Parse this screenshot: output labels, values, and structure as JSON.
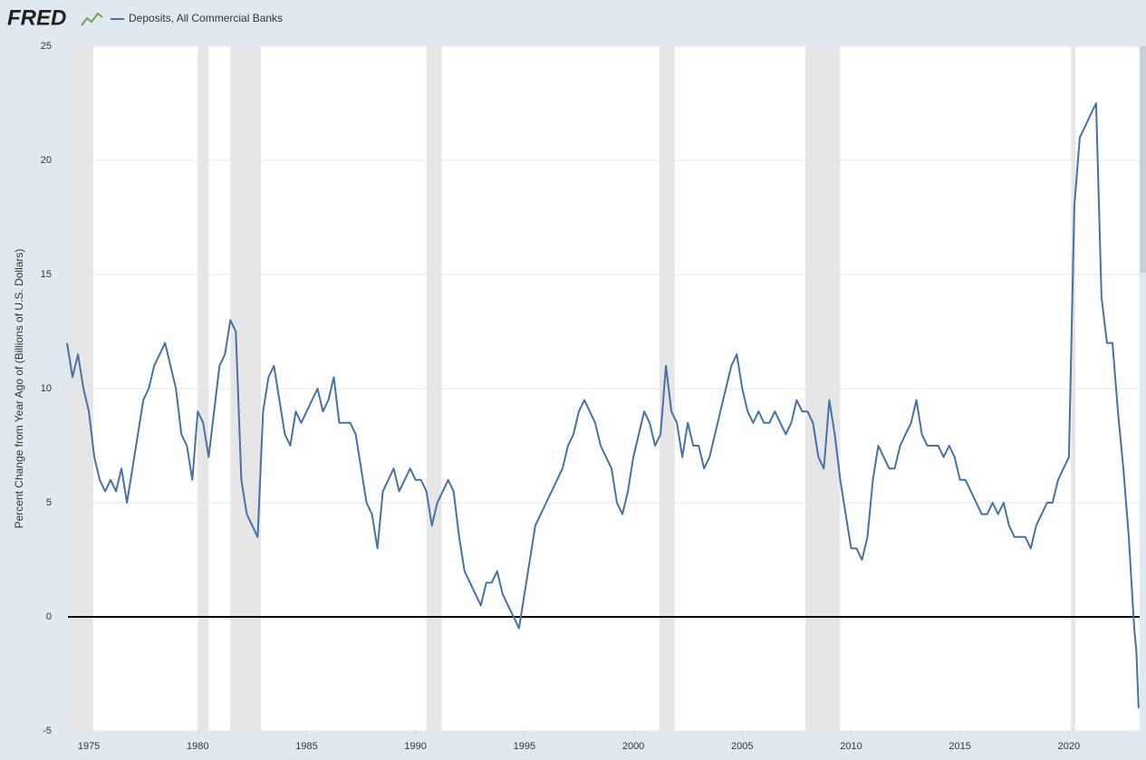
{
  "logo": "FRED",
  "chart_data": {
    "type": "line",
    "y_label": "Percent Change from Year Ago of (Billions of U.S. Dollars)",
    "xlim": [
      1974.04,
      2023.25
    ],
    "xticks": [
      1975,
      1980,
      1985,
      1990,
      1995,
      2000,
      2005,
      2010,
      2015,
      2020
    ],
    "ylim": [
      -5,
      25
    ],
    "yticks": [
      -5,
      0,
      5,
      10,
      15,
      20,
      25
    ],
    "grid": true,
    "recessions": [
      [
        1974.04,
        1975.2
      ],
      [
        1980.0,
        1980.5
      ],
      [
        1981.5,
        1982.9
      ],
      [
        1990.5,
        1991.2
      ],
      [
        2001.2,
        2001.9
      ],
      [
        2007.9,
        2009.5
      ],
      [
        2020.1,
        2020.3
      ]
    ],
    "x": [
      1974,
      1974.25,
      1974.5,
      1974.75,
      1975,
      1975.25,
      1975.5,
      1975.75,
      1976,
      1976.25,
      1976.5,
      1976.75,
      1977,
      1977.25,
      1977.5,
      1977.75,
      1978,
      1978.25,
      1978.5,
      1978.75,
      1979,
      1979.25,
      1979.5,
      1979.75,
      1980,
      1980.25,
      1980.5,
      1980.75,
      1981,
      1981.25,
      1981.5,
      1981.75,
      1982,
      1982.25,
      1982.5,
      1982.75,
      1983,
      1983.25,
      1983.5,
      1983.75,
      1984,
      1984.25,
      1984.5,
      1984.75,
      1985,
      1985.25,
      1985.5,
      1985.75,
      1986,
      1986.25,
      1986.5,
      1986.75,
      1987,
      1987.25,
      1987.5,
      1987.75,
      1988,
      1988.25,
      1988.5,
      1988.75,
      1989,
      1989.25,
      1989.5,
      1989.75,
      1990,
      1990.25,
      1990.5,
      1990.75,
      1991,
      1991.25,
      1991.5,
      1991.75,
      1992,
      1992.25,
      1992.5,
      1992.75,
      1993,
      1993.25,
      1993.5,
      1993.75,
      1994,
      1994.25,
      1994.5,
      1994.75,
      1995,
      1995.25,
      1995.5,
      1995.75,
      1996,
      1996.25,
      1996.5,
      1996.75,
      1997,
      1997.25,
      1997.5,
      1997.75,
      1998,
      1998.25,
      1998.5,
      1998.75,
      1999,
      1999.25,
      1999.5,
      1999.75,
      2000,
      2000.25,
      2000.5,
      2000.75,
      2001,
      2001.25,
      2001.5,
      2001.75,
      2002,
      2002.25,
      2002.5,
      2002.75,
      2003,
      2003.25,
      2003.5,
      2003.75,
      2004,
      2004.25,
      2004.5,
      2004.75,
      2005,
      2005.25,
      2005.5,
      2005.75,
      2006,
      2006.25,
      2006.5,
      2006.75,
      2007,
      2007.25,
      2007.5,
      2007.75,
      2008,
      2008.25,
      2008.5,
      2008.75,
      2009,
      2009.25,
      2009.5,
      2009.75,
      2010,
      2010.25,
      2010.5,
      2010.75,
      2011,
      2011.25,
      2011.5,
      2011.75,
      2012,
      2012.25,
      2012.5,
      2012.75,
      2013,
      2013.25,
      2013.5,
      2013.75,
      2014,
      2014.25,
      2014.5,
      2014.75,
      2015,
      2015.25,
      2015.5,
      2015.75,
      2016,
      2016.25,
      2016.5,
      2016.75,
      2017,
      2017.25,
      2017.5,
      2017.75,
      2018,
      2018.25,
      2018.5,
      2018.75,
      2019,
      2019.25,
      2019.5,
      2019.75,
      2020,
      2020.25,
      2020.5,
      2020.75,
      2021,
      2021.25,
      2021.5,
      2021.75,
      2022,
      2022.25,
      2022.5,
      2022.75,
      2023,
      2023.1,
      2023.2
    ],
    "series": [
      {
        "name": "Deposits, All Commercial Banks",
        "color": "#4572a7",
        "values": [
          12,
          10.5,
          11.5,
          10,
          9,
          7,
          6,
          5.5,
          6,
          5.5,
          6.5,
          5,
          6.5,
          8,
          9.5,
          10,
          11,
          11.5,
          12,
          11,
          10,
          8,
          7.5,
          6,
          9,
          8.5,
          7,
          9,
          11,
          11.5,
          13,
          12.5,
          6,
          4.5,
          4,
          3.5,
          9,
          10.5,
          11,
          9.5,
          8,
          7.5,
          9,
          8.5,
          9,
          9.5,
          10,
          9,
          9.5,
          10.5,
          8.5,
          8.5,
          8.5,
          8,
          6.5,
          5,
          4.5,
          3,
          5.5,
          6,
          6.5,
          5.5,
          6,
          6.5,
          6,
          6,
          5.5,
          4,
          5,
          5.5,
          6,
          5.5,
          3.5,
          2,
          1.5,
          1,
          0.5,
          1.5,
          1.5,
          2,
          1,
          0.5,
          0,
          -0.5,
          1,
          2.5,
          4,
          4.5,
          5,
          5.5,
          6,
          6.5,
          7.5,
          8,
          9,
          9.5,
          9,
          8.5,
          7.5,
          7,
          6.5,
          5,
          4.5,
          5.5,
          7,
          8,
          9,
          8.5,
          7.5,
          8,
          11,
          9,
          8.5,
          7,
          8.5,
          7.5,
          7.5,
          6.5,
          7,
          8,
          9,
          10,
          11,
          11.5,
          10,
          9,
          8.5,
          9,
          8.5,
          8.5,
          9,
          8.5,
          8,
          8.5,
          9.5,
          9,
          9,
          8.5,
          7,
          6.5,
          9.5,
          8,
          6,
          4.5,
          3,
          3,
          2.5,
          3.5,
          6,
          7.5,
          7,
          6.5,
          6.5,
          7.5,
          8,
          8.5,
          9.5,
          8,
          7.5,
          7.5,
          7.5,
          7,
          7.5,
          7,
          6,
          6,
          5.5,
          5,
          4.5,
          4.5,
          5,
          4.5,
          5,
          4,
          3.5,
          3.5,
          3.5,
          3,
          4,
          4.5,
          5,
          5,
          6,
          6.5,
          7,
          18,
          21,
          21.5,
          22,
          22.5,
          14,
          12,
          12,
          9,
          6.5,
          3.5,
          -0.5,
          -1.5,
          -4
        ]
      }
    ]
  }
}
